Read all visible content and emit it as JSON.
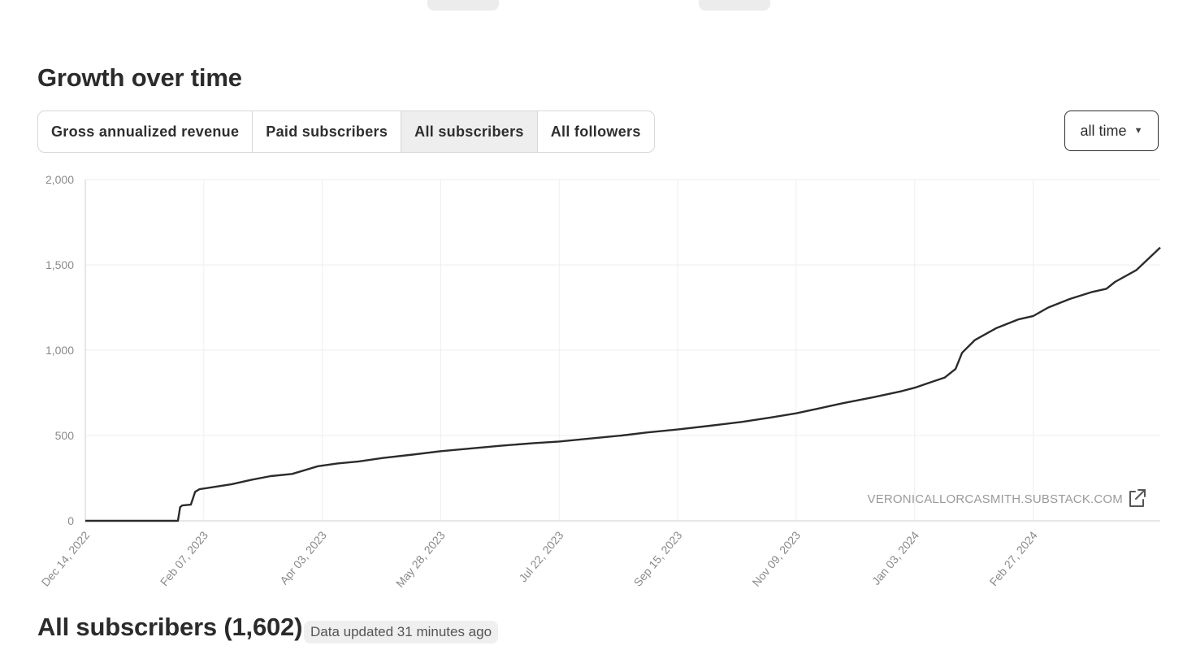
{
  "section": {
    "title": "Growth over time",
    "tabs": [
      {
        "label": "Gross annualized revenue",
        "active": false
      },
      {
        "label": "Paid subscribers",
        "active": false
      },
      {
        "label": "All subscribers",
        "active": true
      },
      {
        "label": "All followers",
        "active": false
      }
    ],
    "range": {
      "selected": "all time"
    }
  },
  "chart_data": {
    "type": "line",
    "title": "",
    "xlabel": "",
    "ylabel": "",
    "ylim": [
      0,
      2000
    ],
    "y_ticks": [
      0,
      500,
      1000,
      1500,
      2000
    ],
    "y_tick_labels": [
      "0",
      "500",
      "1,000",
      "1,500",
      "2,000"
    ],
    "x_range": [
      "2022-12-14",
      "2024-04-26"
    ],
    "x_ticks": [
      "2022-12-14",
      "2023-02-07",
      "2023-04-03",
      "2023-05-28",
      "2023-07-22",
      "2023-09-15",
      "2023-11-09",
      "2024-01-03",
      "2024-02-27"
    ],
    "x_tick_labels": [
      "Dec 14, 2022",
      "Feb 07, 2023",
      "Apr 03, 2023",
      "May 28, 2023",
      "Jul 22, 2023",
      "Sep 15, 2023",
      "Nov 09, 2023",
      "Jan 03, 2024",
      "Feb 27, 2024"
    ],
    "grid": true,
    "legend": "none",
    "line_color": "#2b2b2b",
    "series": [
      {
        "points": [
          [
            "2022-12-14",
            0
          ],
          [
            "2023-01-26",
            0
          ],
          [
            "2023-01-27",
            80
          ],
          [
            "2023-01-28",
            90
          ],
          [
            "2023-02-01",
            95
          ],
          [
            "2023-02-03",
            170
          ],
          [
            "2023-02-05",
            185
          ],
          [
            "2023-02-10",
            195
          ],
          [
            "2023-02-20",
            215
          ],
          [
            "2023-03-01",
            240
          ],
          [
            "2023-03-10",
            262
          ],
          [
            "2023-03-20",
            275
          ],
          [
            "2023-04-01",
            320
          ],
          [
            "2023-04-10",
            336
          ],
          [
            "2023-04-20",
            348
          ],
          [
            "2023-05-01",
            368
          ],
          [
            "2023-05-15",
            388
          ],
          [
            "2023-05-28",
            408
          ],
          [
            "2023-06-10",
            423
          ],
          [
            "2023-06-25",
            440
          ],
          [
            "2023-07-10",
            455
          ],
          [
            "2023-07-22",
            465
          ],
          [
            "2023-08-05",
            482
          ],
          [
            "2023-08-20",
            500
          ],
          [
            "2023-09-01",
            518
          ],
          [
            "2023-09-15",
            535
          ],
          [
            "2023-09-30",
            557
          ],
          [
            "2023-10-15",
            580
          ],
          [
            "2023-10-28",
            605
          ],
          [
            "2023-11-09",
            630
          ],
          [
            "2023-11-20",
            660
          ],
          [
            "2023-12-01",
            690
          ],
          [
            "2023-12-15",
            725
          ],
          [
            "2023-12-28",
            760
          ],
          [
            "2024-01-03",
            780
          ],
          [
            "2024-01-10",
            810
          ],
          [
            "2024-01-17",
            840
          ],
          [
            "2024-01-22",
            890
          ],
          [
            "2024-01-25",
            985
          ],
          [
            "2024-01-31",
            1060
          ],
          [
            "2024-02-10",
            1130
          ],
          [
            "2024-02-20",
            1180
          ],
          [
            "2024-02-27",
            1200
          ],
          [
            "2024-03-05",
            1250
          ],
          [
            "2024-03-15",
            1300
          ],
          [
            "2024-03-25",
            1340
          ],
          [
            "2024-04-01",
            1360
          ],
          [
            "2024-04-05",
            1400
          ],
          [
            "2024-04-15",
            1470
          ],
          [
            "2024-04-26",
            1602
          ]
        ]
      }
    ],
    "watermark": "VERONICALLORCASMITH.SUBSTACK.COM"
  },
  "icons": {
    "watermark": "external-link-icon",
    "range": "caret-down-icon"
  },
  "footer": {
    "title": "All subscribers (1,602)",
    "updated": "Data updated 31 minutes ago"
  }
}
